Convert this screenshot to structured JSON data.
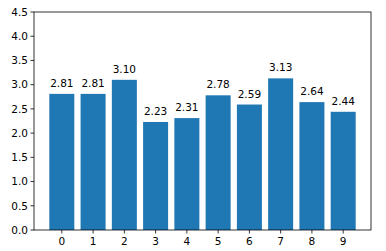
{
  "chart_data": {
    "type": "bar",
    "categories": [
      "0",
      "1",
      "2",
      "3",
      "4",
      "5",
      "6",
      "7",
      "8",
      "9"
    ],
    "values": [
      2.81,
      2.81,
      3.1,
      2.23,
      2.31,
      2.78,
      2.59,
      3.13,
      2.64,
      2.44
    ],
    "value_labels": [
      "2.81",
      "2.81",
      "3.10",
      "2.23",
      "2.31",
      "2.78",
      "2.59",
      "3.13",
      "2.64",
      "2.44"
    ],
    "color": "#1f77b4",
    "ylim": [
      0,
      4.5
    ],
    "yticks": [
      {
        "value": 0,
        "label": "0.0"
      },
      0.5,
      {
        "value": 1,
        "label": "1.0"
      },
      1.5,
      {
        "value": 2,
        "label": "2.0"
      },
      2.5,
      {
        "value": 3,
        "label": "3.0"
      },
      3.5,
      {
        "value": 4,
        "label": "4.0"
      },
      4.5
    ],
    "data_labels": true,
    "grid": false
  }
}
